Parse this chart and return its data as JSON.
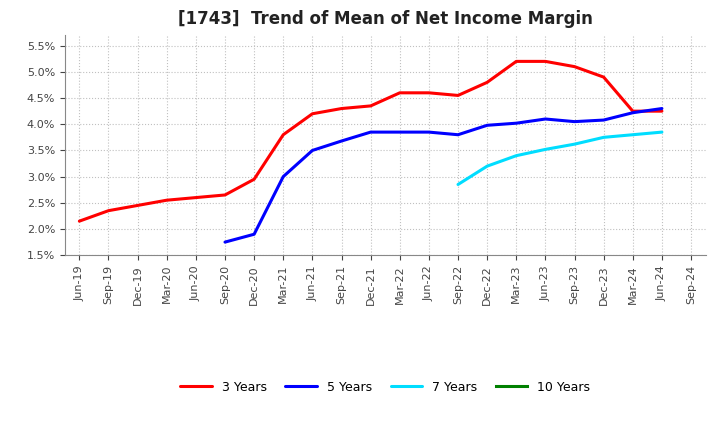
{
  "title": "[1743]  Trend of Mean of Net Income Margin",
  "x_labels": [
    "Jun-19",
    "Sep-19",
    "Dec-19",
    "Mar-20",
    "Jun-20",
    "Sep-20",
    "Dec-20",
    "Mar-21",
    "Jun-21",
    "Sep-21",
    "Dec-21",
    "Mar-22",
    "Jun-22",
    "Sep-22",
    "Dec-22",
    "Mar-23",
    "Jun-23",
    "Sep-23",
    "Dec-23",
    "Mar-24",
    "Jun-24",
    "Sep-24"
  ],
  "ylim": [
    0.015,
    0.057
  ],
  "yticks": [
    0.015,
    0.02,
    0.025,
    0.03,
    0.035,
    0.04,
    0.045,
    0.05,
    0.055
  ],
  "series": {
    "3 Years": {
      "color": "#ff0000",
      "data_x": [
        "Jun-19",
        "Sep-19",
        "Dec-19",
        "Mar-20",
        "Jun-20",
        "Sep-20",
        "Dec-20",
        "Mar-21",
        "Jun-21",
        "Sep-21",
        "Dec-21",
        "Mar-22",
        "Jun-22",
        "Sep-22",
        "Dec-22",
        "Mar-23",
        "Jun-23",
        "Sep-23",
        "Dec-23",
        "Mar-24",
        "Jun-24"
      ],
      "data_y": [
        0.0215,
        0.0235,
        0.0245,
        0.0255,
        0.026,
        0.0265,
        0.0295,
        0.038,
        0.042,
        0.043,
        0.0435,
        0.046,
        0.046,
        0.0455,
        0.048,
        0.052,
        0.052,
        0.051,
        0.049,
        0.0425,
        0.0425
      ]
    },
    "5 Years": {
      "color": "#0000ff",
      "data_x": [
        "Sep-20",
        "Dec-20",
        "Mar-21",
        "Jun-21",
        "Sep-21",
        "Dec-21",
        "Mar-22",
        "Jun-22",
        "Sep-22",
        "Dec-22",
        "Mar-23",
        "Jun-23",
        "Sep-23",
        "Dec-23",
        "Mar-24",
        "Jun-24"
      ],
      "data_y": [
        0.0175,
        0.019,
        0.03,
        0.035,
        0.0368,
        0.0385,
        0.0385,
        0.0385,
        0.038,
        0.0398,
        0.0402,
        0.041,
        0.0405,
        0.0408,
        0.0422,
        0.043
      ]
    },
    "7 Years": {
      "color": "#00ddff",
      "data_x": [
        "Sep-22",
        "Dec-22",
        "Mar-23",
        "Jun-23",
        "Sep-23",
        "Dec-23",
        "Mar-24",
        "Jun-24"
      ],
      "data_y": [
        0.0285,
        0.032,
        0.034,
        0.0352,
        0.0362,
        0.0375,
        0.038,
        0.0385
      ]
    },
    "10 Years": {
      "color": "#008000",
      "data_x": [],
      "data_y": []
    }
  },
  "background_color": "#ffffff",
  "grid_color": "#c0c0c0",
  "title_fontsize": 12,
  "tick_fontsize": 8,
  "legend_fontsize": 9
}
